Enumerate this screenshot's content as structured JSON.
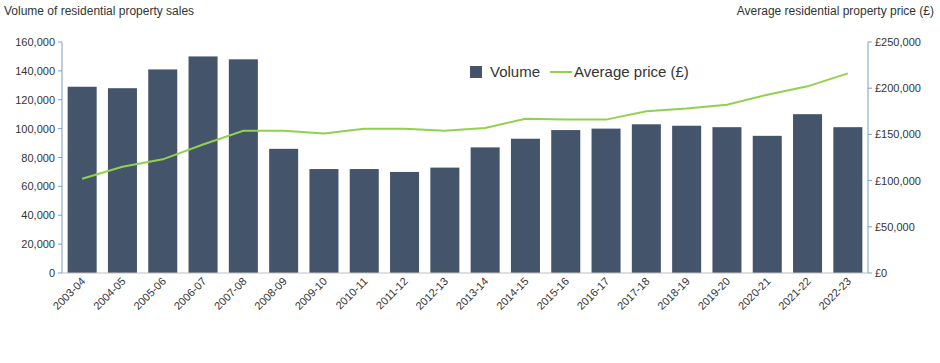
{
  "chart_data": {
    "type": "bar",
    "ylabel": "Volume of residential property sales",
    "y2label": "Average residential property price (£)",
    "categories": [
      "2003-04",
      "2004-05",
      "2005-06",
      "2006-07",
      "2007-08",
      "2008-09",
      "2009-10",
      "2010-11",
      "2011-12",
      "2012-13",
      "2013-14",
      "2014-15",
      "2015-16",
      "2016-17",
      "2017-18",
      "2018-19",
      "2019-20",
      "2020-21",
      "2021-22",
      "2022-23"
    ],
    "series": [
      {
        "name": "Volume",
        "type": "bar",
        "color": "#44546a",
        "values": [
          129000,
          128000,
          141000,
          150000,
          148000,
          86000,
          72000,
          72000,
          70000,
          73000,
          87000,
          93000,
          99000,
          100000,
          103000,
          102000,
          101000,
          95000,
          110000,
          101000
        ]
      },
      {
        "name": "Average price (£)",
        "type": "line",
        "axis": "y2",
        "color": "#92d050",
        "values": [
          102000,
          115000,
          123000,
          139000,
          154000,
          154000,
          151000,
          156000,
          156000,
          154000,
          157000,
          167000,
          166000,
          166000,
          175000,
          178000,
          182000,
          193000,
          202000,
          216000
        ]
      }
    ],
    "ylim": [
      0,
      160000
    ],
    "yticks": [
      0,
      {
        "value": 20000,
        "label": "20,000"
      },
      {
        "value": 40000,
        "label": "40,000"
      },
      {
        "value": 60000,
        "label": "60,000"
      },
      {
        "value": 80000,
        "label": "80,000"
      },
      {
        "value": 100000,
        "label": "100,000"
      },
      {
        "value": 120000,
        "label": "120,000"
      },
      {
        "value": 140000,
        "label": "140,000"
      },
      {
        "value": 160000,
        "label": "160,000"
      }
    ],
    "y2lim": [
      0,
      250000
    ],
    "y2ticks": [
      {
        "value": 0,
        "label": "£0"
      },
      {
        "value": 50000,
        "label": "£50,000"
      },
      {
        "value": 100000,
        "label": "£100,000"
      },
      {
        "value": 150000,
        "label": "£150,000"
      },
      {
        "value": 200000,
        "label": "£200,000"
      },
      {
        "value": 250000,
        "label": "£250,000"
      }
    ],
    "grid": false,
    "legend": "top"
  }
}
